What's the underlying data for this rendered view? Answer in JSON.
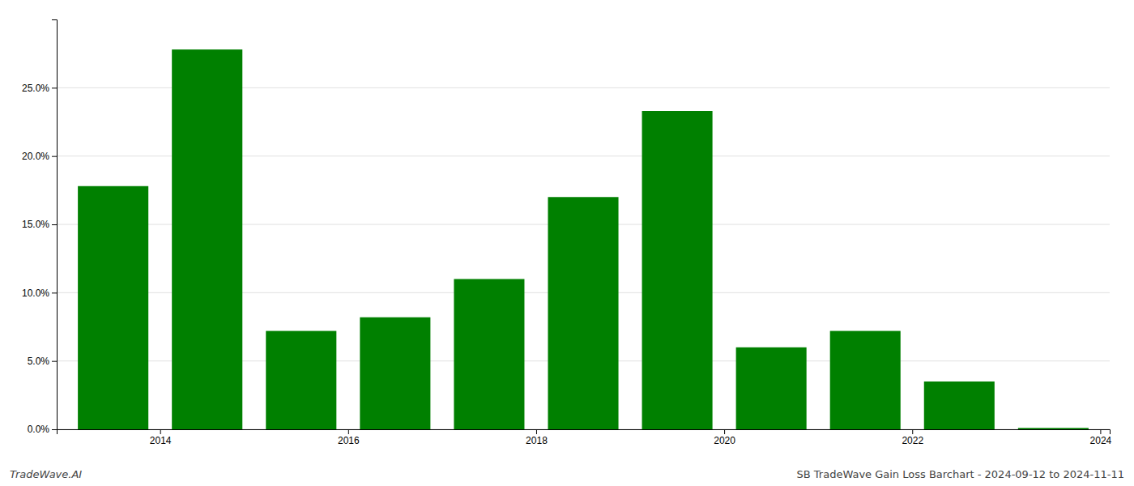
{
  "chart_data": {
    "type": "bar",
    "x": [
      2013,
      2014,
      2015,
      2016,
      2017,
      2018,
      2019,
      2020,
      2021,
      2022,
      2023
    ],
    "values": [
      0.178,
      0.278,
      0.072,
      0.082,
      0.11,
      0.17,
      0.233,
      0.06,
      0.072,
      0.035,
      0.001
    ],
    "color": "#008000",
    "xlim": [
      2012.4,
      2023.6
    ],
    "xticks": [
      {
        "value": 2013.5,
        "label": "2014"
      },
      {
        "value": 2015.5,
        "label": "2016"
      },
      {
        "value": 2017.5,
        "label": "2018"
      },
      {
        "value": 2019.5,
        "label": "2020"
      },
      {
        "value": 2021.5,
        "label": "2022"
      },
      {
        "value": 2023.5,
        "label": "2024"
      }
    ],
    "ylim": [
      0,
      0.3
    ],
    "yticks": [
      {
        "value": 0.0,
        "label": "0.0%"
      },
      {
        "value": 0.05,
        "label": "5.0%"
      },
      {
        "value": 0.1,
        "label": "10.0%"
      },
      {
        "value": 0.15,
        "label": "15.0%"
      },
      {
        "value": 0.2,
        "label": "20.0%"
      },
      {
        "value": 0.25,
        "label": "25.0%"
      }
    ],
    "grid": true,
    "annotations": [
      "TradeWave.AI",
      "SB TradeWave Gain Loss Barchart - 2024-09-12 to 2024-11-11"
    ]
  }
}
